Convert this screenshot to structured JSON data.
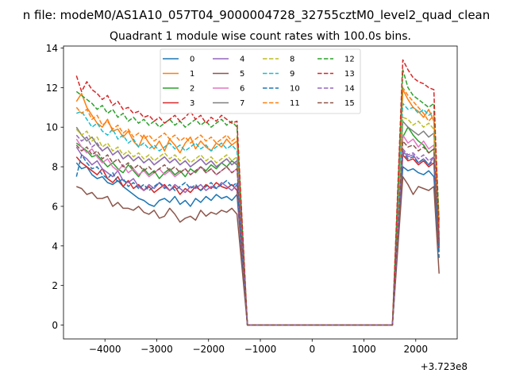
{
  "figure": {
    "suptitle": "n file: modeM0/AS1A10_057T04_9000004728_32755cztM0_level2_quad_clean",
    "offset_label": "+3.723e8"
  },
  "chart_data": {
    "type": "line",
    "title": "Quadrant 1 module wise count rates with 100.0s bins.",
    "xlabel": "",
    "ylabel": "",
    "x_offset": 372300000,
    "xlim": [
      -4800,
      2800
    ],
    "ylim": [
      -0.7,
      14.1
    ],
    "xticks": [
      -4000,
      -3000,
      -2000,
      -1000,
      0,
      1000,
      2000
    ],
    "xtick_labels": [
      "−4000",
      "−3000",
      "−2000",
      "−1000",
      "0",
      "1000",
      "2000"
    ],
    "yticks": [
      0,
      2,
      4,
      6,
      8,
      10,
      12,
      14
    ],
    "ytick_labels": [
      "0",
      "2",
      "4",
      "6",
      "8",
      "10",
      "12",
      "14"
    ],
    "legend_position": "upper center",
    "legend_columns": 4,
    "x_pattern": {
      "segment1_start": -4550,
      "segment1_end": -1450,
      "step": 100,
      "drop_x": -1250,
      "zero_end": 1550,
      "segment2_start": 1750,
      "segment2_end": 2450
    },
    "series": [
      {
        "name": "0",
        "style": "solid",
        "color": "#1f77b4",
        "first": [
          8.2,
          7.9,
          8.0,
          7.6,
          7.4,
          7.5,
          7.2,
          7.1,
          7.3,
          7.0,
          6.8,
          6.6,
          6.4,
          6.3,
          6.1,
          6.0,
          6.3,
          6.4,
          6.2,
          6.5,
          6.1,
          6.3,
          6.0,
          6.4,
          6.2,
          6.5,
          6.3,
          6.6,
          6.4,
          6.5,
          6.3,
          6.6
        ],
        "second": [
          8.0,
          7.8,
          7.9,
          7.7,
          7.6,
          7.8,
          7.5,
          3.7
        ]
      },
      {
        "name": "1",
        "style": "solid",
        "color": "#ff7f0e",
        "first": [
          11.3,
          11.7,
          11.0,
          10.6,
          10.2,
          10.0,
          10.4,
          9.8,
          9.9,
          9.5,
          9.8,
          9.3,
          9.0,
          9.6,
          9.2,
          8.9,
          9.3,
          8.8,
          9.4,
          9.1,
          8.7,
          9.2,
          9.5,
          8.9,
          9.3,
          9.0,
          8.8,
          9.2,
          9.0,
          9.4,
          9.1,
          9.3
        ],
        "second": [
          11.9,
          11.4,
          11.0,
          10.8,
          10.5,
          10.9,
          10.3,
          5.2
        ]
      },
      {
        "name": "2",
        "style": "solid",
        "color": "#2ca02c",
        "first": [
          9.2,
          9.0,
          8.8,
          8.5,
          8.6,
          8.3,
          8.0,
          8.2,
          7.9,
          7.7,
          8.1,
          7.8,
          7.5,
          7.9,
          7.6,
          7.8,
          7.4,
          7.7,
          7.9,
          7.6,
          7.8,
          7.5,
          7.9,
          7.7,
          8.0,
          7.8,
          8.1,
          7.9,
          8.2,
          8.0,
          8.3,
          8.1
        ],
        "second": [
          9.5,
          10.0,
          9.6,
          9.3,
          9.1,
          8.7,
          8.9,
          4.0
        ]
      },
      {
        "name": "3",
        "style": "solid",
        "color": "#d62728",
        "first": [
          8.5,
          8.2,
          8.0,
          7.8,
          7.6,
          7.9,
          7.4,
          7.2,
          7.5,
          7.0,
          7.3,
          6.9,
          7.1,
          6.8,
          7.0,
          6.7,
          6.9,
          7.1,
          6.8,
          7.0,
          6.6,
          6.9,
          6.7,
          7.0,
          6.8,
          7.1,
          6.9,
          7.2,
          7.0,
          6.9,
          7.1,
          6.8
        ],
        "second": [
          8.6,
          8.3,
          8.4,
          8.1,
          8.3,
          8.0,
          8.2,
          3.9
        ]
      },
      {
        "name": "4",
        "style": "solid",
        "color": "#9467bd",
        "first": [
          9.0,
          8.6,
          8.4,
          8.1,
          8.3,
          7.9,
          7.7,
          7.5,
          7.8,
          7.3,
          7.2,
          7.4,
          7.0,
          6.8,
          7.1,
          6.9,
          7.2,
          7.0,
          6.8,
          7.1,
          6.9,
          6.7,
          7.0,
          6.9,
          7.1,
          6.8,
          7.0,
          6.9,
          7.2,
          7.0,
          6.8,
          7.1
        ],
        "second": [
          8.8,
          8.5,
          8.6,
          8.2,
          8.4,
          8.1,
          8.5,
          4.1
        ]
      },
      {
        "name": "5",
        "style": "solid",
        "color": "#8c564b",
        "first": [
          7.0,
          6.9,
          6.6,
          6.7,
          6.4,
          6.4,
          6.5,
          6.0,
          6.2,
          5.9,
          5.9,
          5.8,
          6.0,
          5.7,
          5.6,
          5.8,
          5.4,
          5.5,
          5.9,
          5.6,
          5.2,
          5.4,
          5.5,
          5.3,
          5.8,
          5.5,
          5.7,
          5.6,
          5.8,
          5.7,
          5.9,
          5.6
        ],
        "second": [
          7.5,
          7.1,
          6.6,
          7.0,
          6.9,
          6.8,
          7.0,
          2.6
        ]
      },
      {
        "name": "6",
        "style": "solid",
        "color": "#e377c2",
        "first": [
          9.4,
          9.0,
          8.7,
          8.9,
          8.5,
          8.2,
          8.4,
          8.0,
          7.8,
          8.1,
          7.7,
          7.9,
          7.6,
          7.8,
          7.5,
          7.7,
          7.9,
          7.6,
          7.8,
          7.5,
          7.7,
          7.9,
          7.6,
          7.8,
          8.0,
          7.7,
          7.9,
          7.6,
          7.8,
          8.0,
          7.7,
          7.9
        ],
        "second": [
          9.6,
          9.2,
          9.4,
          9.0,
          9.3,
          8.9,
          9.1,
          4.3
        ]
      },
      {
        "name": "7",
        "style": "solid",
        "color": "#7f7f7f",
        "first": [
          10.0,
          9.6,
          9.3,
          9.5,
          9.1,
          8.8,
          9.0,
          8.6,
          8.8,
          8.4,
          8.6,
          8.3,
          8.5,
          8.2,
          8.4,
          8.1,
          8.3,
          8.5,
          8.2,
          8.4,
          8.1,
          8.3,
          8.0,
          8.2,
          8.4,
          8.1,
          8.3,
          8.0,
          8.2,
          8.4,
          8.1,
          8.3
        ],
        "second": [
          10.3,
          10.0,
          9.8,
          9.6,
          9.8,
          9.5,
          9.7,
          4.5
        ]
      },
      {
        "name": "8",
        "style": "dashed",
        "color": "#bcbd22",
        "first": [
          9.9,
          9.6,
          9.8,
          9.3,
          9.5,
          9.0,
          9.2,
          8.8,
          9.0,
          8.6,
          8.8,
          8.5,
          8.7,
          8.4,
          8.6,
          8.3,
          8.5,
          8.7,
          8.4,
          8.6,
          8.3,
          8.5,
          8.2,
          8.4,
          8.6,
          8.3,
          8.5,
          8.2,
          8.4,
          8.6,
          8.3,
          8.5
        ],
        "second": [
          10.5,
          10.4,
          10.1,
          10.3,
          10.0,
          10.2,
          9.9,
          4.6
        ]
      },
      {
        "name": "9",
        "style": "dashed",
        "color": "#17becf",
        "first": [
          10.7,
          10.8,
          10.4,
          10.0,
          10.2,
          9.8,
          9.6,
          9.9,
          9.4,
          9.6,
          9.2,
          9.4,
          9.0,
          9.2,
          8.9,
          9.1,
          8.8,
          9.0,
          9.2,
          8.9,
          9.1,
          8.8,
          9.0,
          9.2,
          8.9,
          9.1,
          8.8,
          9.0,
          9.2,
          8.9,
          9.1,
          8.8
        ],
        "second": [
          11.2,
          10.9,
          11.0,
          10.7,
          10.9,
          10.6,
          10.8,
          4.9
        ]
      },
      {
        "name": "10",
        "style": "dashed",
        "color": "#1f77b4",
        "first": [
          7.5,
          8.6,
          8.2,
          7.9,
          8.0,
          7.6,
          7.4,
          7.7,
          7.2,
          7.4,
          7.0,
          7.2,
          6.9,
          7.1,
          6.8,
          7.0,
          7.2,
          6.9,
          7.1,
          6.8,
          7.0,
          7.2,
          6.9,
          7.1,
          6.8,
          7.0,
          7.2,
          6.9,
          7.1,
          7.3,
          7.0,
          7.2
        ],
        "second": [
          8.7,
          8.4,
          8.5,
          8.2,
          8.4,
          8.1,
          8.3,
          3.4
        ]
      },
      {
        "name": "11",
        "style": "dashed",
        "color": "#ff7f0e",
        "first": [
          11.0,
          10.7,
          10.9,
          10.4,
          10.6,
          10.1,
          10.3,
          9.9,
          10.1,
          9.7,
          9.9,
          9.5,
          9.7,
          9.4,
          9.6,
          9.3,
          9.5,
          9.7,
          9.4,
          9.6,
          9.3,
          9.5,
          9.2,
          9.4,
          9.6,
          9.3,
          9.5,
          9.2,
          9.4,
          9.6,
          9.3,
          9.5
        ],
        "second": [
          12.0,
          11.6,
          11.3,
          11.0,
          10.7,
          10.3,
          10.6,
          5.1
        ]
      },
      {
        "name": "12",
        "style": "dashed",
        "color": "#2ca02c",
        "first": [
          11.8,
          11.6,
          11.4,
          11.2,
          10.9,
          11.1,
          10.7,
          10.9,
          10.5,
          10.7,
          10.3,
          10.5,
          10.2,
          10.4,
          10.1,
          10.3,
          10.0,
          10.2,
          10.4,
          10.1,
          10.3,
          10.0,
          10.2,
          10.4,
          10.1,
          10.3,
          10.0,
          10.2,
          10.4,
          10.1,
          10.3,
          10.0
        ],
        "second": [
          12.9,
          12.0,
          11.6,
          11.4,
          11.2,
          11.0,
          11.2,
          5.3
        ]
      },
      {
        "name": "13",
        "style": "dashed",
        "color": "#d62728",
        "first": [
          12.6,
          11.8,
          12.3,
          11.9,
          11.7,
          11.4,
          11.6,
          11.1,
          11.3,
          10.9,
          11.0,
          10.7,
          10.8,
          10.5,
          10.6,
          10.3,
          10.5,
          10.2,
          10.4,
          10.6,
          10.3,
          10.5,
          10.8,
          10.4,
          10.6,
          10.2,
          10.5,
          10.3,
          10.6,
          10.4,
          10.2,
          10.3
        ],
        "second": [
          13.4,
          12.9,
          12.5,
          12.3,
          12.2,
          12.0,
          11.9,
          4.2
        ]
      },
      {
        "name": "14",
        "style": "dashed",
        "color": "#9467bd",
        "first": [
          9.6,
          9.3,
          9.5,
          9.0,
          9.2,
          8.8,
          9.0,
          8.6,
          8.8,
          8.4,
          8.6,
          8.3,
          8.5,
          8.2,
          8.4,
          8.1,
          8.3,
          8.5,
          8.2,
          8.4,
          8.1,
          8.3,
          8.0,
          8.2,
          8.4,
          8.1,
          8.3,
          8.0,
          8.2,
          8.4,
          8.1,
          8.3
        ],
        "second": [
          8.9,
          8.6,
          8.7,
          8.4,
          8.6,
          8.3,
          8.5,
          4.0
        ]
      },
      {
        "name": "15",
        "style": "dashed",
        "color": "#8c564b",
        "first": [
          9.1,
          8.8,
          9.0,
          8.6,
          8.8,
          8.4,
          8.6,
          8.2,
          8.4,
          8.0,
          8.2,
          7.9,
          8.1,
          7.8,
          8.0,
          7.7,
          7.9,
          8.1,
          7.8,
          8.0,
          7.7,
          7.9,
          7.6,
          7.8,
          8.0,
          7.7,
          7.9,
          7.6,
          7.8,
          8.0,
          7.7,
          7.9
        ],
        "second": [
          9.3,
          9.0,
          9.1,
          8.8,
          9.0,
          8.7,
          8.9,
          4.1
        ]
      }
    ]
  }
}
